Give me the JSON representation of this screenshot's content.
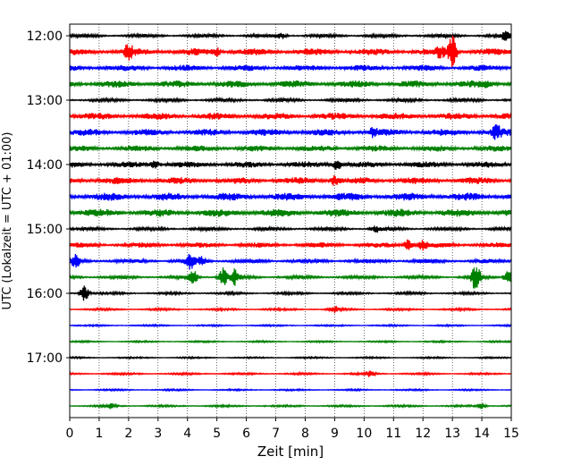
{
  "chart_data": {
    "type": "line",
    "xlabel": "Zeit  [min]",
    "ylabel": "UTC (Lokalzeit = UTC + 01:00)",
    "xlim": [
      0,
      15
    ],
    "x_ticks": [
      "0",
      "1",
      "2",
      "3",
      "4",
      "5",
      "6",
      "7",
      "8",
      "9",
      "10",
      "11",
      "12",
      "13",
      "14",
      "15"
    ],
    "y_ticks": [
      "12:00",
      "13:00",
      "14:00",
      "15:00",
      "16:00",
      "17:00"
    ],
    "grid": "vertical dotted at each minute",
    "trace_interval_minutes": 15,
    "trace_colors": [
      "#000000",
      "#ff0000",
      "#0000ff",
      "#008000"
    ],
    "traces": [
      {
        "start": "12:00",
        "color": "#000000",
        "noise": 2.0,
        "events": [
          [
            7.2,
            3
          ],
          [
            14.8,
            4
          ]
        ]
      },
      {
        "start": "12:15",
        "color": "#ff0000",
        "noise": 4.0,
        "events": [
          [
            2.0,
            8
          ],
          [
            5.0,
            4
          ],
          [
            12.6,
            5
          ],
          [
            13.0,
            17
          ]
        ]
      },
      {
        "start": "12:30",
        "color": "#0000ff",
        "noise": 3.5,
        "events": []
      },
      {
        "start": "12:45",
        "color": "#008000",
        "noise": 4.0,
        "events": [
          [
            14.2,
            2
          ]
        ]
      },
      {
        "start": "13:00",
        "color": "#000000",
        "noise": 2.0,
        "events": []
      },
      {
        "start": "13:15",
        "color": "#ff0000",
        "noise": 4.0,
        "events": []
      },
      {
        "start": "13:30",
        "color": "#0000ff",
        "noise": 4.0,
        "events": [
          [
            10.3,
            4
          ],
          [
            14.5,
            7
          ]
        ]
      },
      {
        "start": "13:45",
        "color": "#008000",
        "noise": 3.5,
        "events": []
      },
      {
        "start": "14:00",
        "color": "#000000",
        "noise": 3.5,
        "events": [
          [
            2.9,
            4
          ],
          [
            9.1,
            6
          ]
        ]
      },
      {
        "start": "14:15",
        "color": "#ff0000",
        "noise": 4.0,
        "events": [
          [
            9.0,
            5
          ]
        ]
      },
      {
        "start": "14:30",
        "color": "#0000ff",
        "noise": 4.5,
        "events": []
      },
      {
        "start": "14:45",
        "color": "#008000",
        "noise": 4.5,
        "events": []
      },
      {
        "start": "15:00",
        "color": "#000000",
        "noise": 2.0,
        "events": [
          [
            10.4,
            3
          ]
        ]
      },
      {
        "start": "15:15",
        "color": "#ff0000",
        "noise": 3.0,
        "events": [
          [
            11.5,
            6
          ],
          [
            12.0,
            5
          ]
        ]
      },
      {
        "start": "15:30",
        "color": "#0000ff",
        "noise": 2.5,
        "events": [
          [
            0.2,
            6
          ],
          [
            4.1,
            9
          ],
          [
            4.5,
            5
          ]
        ]
      },
      {
        "start": "15:45",
        "color": "#008000",
        "noise": 2.0,
        "events": [
          [
            4.2,
            7
          ],
          [
            5.2,
            10
          ],
          [
            5.6,
            8
          ],
          [
            13.8,
            16
          ],
          [
            14.9,
            7
          ]
        ]
      },
      {
        "start": "16:00",
        "color": "#000000",
        "noise": 1.5,
        "events": [
          [
            0.5,
            9
          ]
        ]
      },
      {
        "start": "16:15",
        "color": "#ff0000",
        "noise": 1.3,
        "events": [
          [
            9.0,
            3
          ]
        ]
      },
      {
        "start": "16:30",
        "color": "#0000ff",
        "noise": 1.0,
        "events": []
      },
      {
        "start": "16:45",
        "color": "#008000",
        "noise": 1.0,
        "events": []
      },
      {
        "start": "17:00",
        "color": "#000000",
        "noise": 1.0,
        "events": []
      },
      {
        "start": "17:15",
        "color": "#ff0000",
        "noise": 1.2,
        "events": [
          [
            10.2,
            3
          ]
        ]
      },
      {
        "start": "17:30",
        "color": "#0000ff",
        "noise": 1.0,
        "events": []
      },
      {
        "start": "17:45",
        "color": "#008000",
        "noise": 1.2,
        "events": [
          [
            1.4,
            3
          ],
          [
            14.0,
            3
          ]
        ]
      }
    ]
  }
}
